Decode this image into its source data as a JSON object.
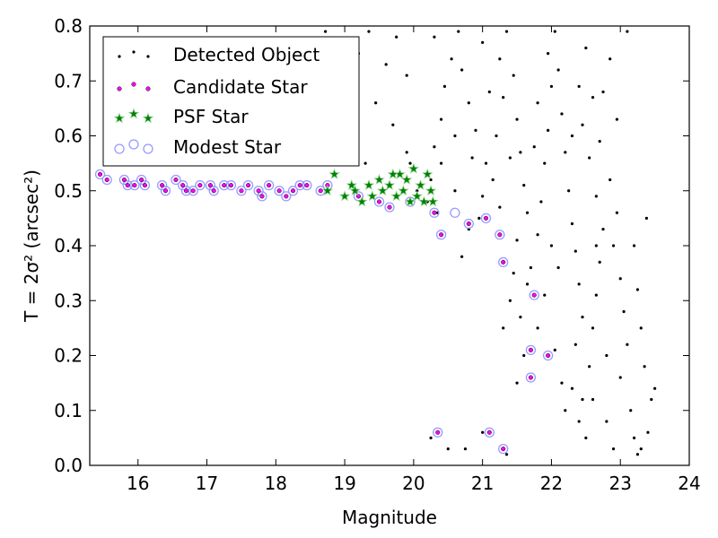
{
  "chart_data": {
    "type": "scatter",
    "title": "",
    "xlabel": "Magnitude",
    "ylabel": "T = 2σ² (arcsec²)",
    "xlim": [
      15.3,
      24.0
    ],
    "ylim": [
      0.0,
      0.8
    ],
    "x_ticks": [
      "16",
      "17",
      "18",
      "19",
      "20",
      "21",
      "22",
      "23",
      "24"
    ],
    "y_ticks": [
      "0.0",
      "0.1",
      "0.2",
      "0.3",
      "0.4",
      "0.5",
      "0.6",
      "0.7",
      "0.8"
    ],
    "grid": false,
    "legend_position": "top-left",
    "series": [
      {
        "name": "Detected Object",
        "marker": "dot",
        "color": "#000000",
        "points": [
          [
            18.72,
            0.79
          ],
          [
            18.95,
            0.77
          ],
          [
            19.2,
            0.75
          ],
          [
            19.35,
            0.79
          ],
          [
            19.6,
            0.73
          ],
          [
            19.75,
            0.78
          ],
          [
            19.9,
            0.71
          ],
          [
            19.05,
            0.69
          ],
          [
            19.45,
            0.66
          ],
          [
            18.95,
            0.64
          ],
          [
            19.7,
            0.62
          ],
          [
            19.9,
            0.57
          ],
          [
            19.95,
            0.55
          ],
          [
            20.05,
            0.5
          ],
          [
            20.25,
            0.52
          ],
          [
            20.2,
            0.48
          ],
          [
            20.3,
            0.58
          ],
          [
            20.4,
            0.63
          ],
          [
            20.45,
            0.69
          ],
          [
            20.55,
            0.74
          ],
          [
            20.3,
            0.78
          ],
          [
            20.65,
            0.79
          ],
          [
            20.7,
            0.72
          ],
          [
            20.8,
            0.66
          ],
          [
            20.9,
            0.61
          ],
          [
            21.05,
            0.55
          ],
          [
            21.0,
            0.49
          ],
          [
            20.95,
            0.45
          ],
          [
            20.8,
            0.43
          ],
          [
            20.7,
            0.38
          ],
          [
            21.15,
            0.52
          ],
          [
            21.2,
            0.6
          ],
          [
            21.3,
            0.67
          ],
          [
            21.25,
            0.74
          ],
          [
            21.35,
            0.79
          ],
          [
            21.45,
            0.71
          ],
          [
            21.5,
            0.63
          ],
          [
            21.55,
            0.57
          ],
          [
            21.6,
            0.51
          ],
          [
            21.65,
            0.46
          ],
          [
            21.5,
            0.41
          ],
          [
            21.45,
            0.35
          ],
          [
            21.4,
            0.3
          ],
          [
            21.55,
            0.27
          ],
          [
            21.6,
            0.2
          ],
          [
            21.5,
            0.15
          ],
          [
            21.7,
            0.36
          ],
          [
            21.8,
            0.42
          ],
          [
            21.85,
            0.48
          ],
          [
            21.9,
            0.55
          ],
          [
            21.95,
            0.61
          ],
          [
            22.0,
            0.69
          ],
          [
            21.95,
            0.75
          ],
          [
            22.05,
            0.79
          ],
          [
            22.1,
            0.72
          ],
          [
            22.15,
            0.64
          ],
          [
            22.2,
            0.57
          ],
          [
            22.25,
            0.5
          ],
          [
            22.3,
            0.44
          ],
          [
            22.35,
            0.39
          ],
          [
            22.4,
            0.33
          ],
          [
            22.45,
            0.27
          ],
          [
            22.35,
            0.22
          ],
          [
            22.3,
            0.14
          ],
          [
            22.4,
            0.08
          ],
          [
            22.5,
            0.05
          ],
          [
            22.55,
            0.18
          ],
          [
            22.6,
            0.25
          ],
          [
            22.65,
            0.31
          ],
          [
            22.7,
            0.37
          ],
          [
            22.75,
            0.43
          ],
          [
            22.65,
            0.49
          ],
          [
            22.55,
            0.56
          ],
          [
            22.45,
            0.62
          ],
          [
            22.4,
            0.69
          ],
          [
            22.5,
            0.76
          ],
          [
            22.6,
            0.67
          ],
          [
            22.7,
            0.59
          ],
          [
            22.85,
            0.52
          ],
          [
            22.95,
            0.46
          ],
          [
            22.9,
            0.4
          ],
          [
            23.0,
            0.34
          ],
          [
            23.05,
            0.28
          ],
          [
            23.1,
            0.22
          ],
          [
            23.0,
            0.16
          ],
          [
            23.15,
            0.1
          ],
          [
            23.2,
            0.05
          ],
          [
            23.3,
            0.03
          ],
          [
            23.4,
            0.06
          ],
          [
            23.45,
            0.12
          ],
          [
            23.35,
            0.18
          ],
          [
            23.3,
            0.25
          ],
          [
            23.25,
            0.32
          ],
          [
            23.38,
            0.45
          ],
          [
            23.5,
            0.14
          ],
          [
            23.1,
            0.79
          ],
          [
            22.85,
            0.74
          ],
          [
            22.95,
            0.63
          ],
          [
            22.75,
            0.68
          ],
          [
            21.9,
            0.31
          ],
          [
            21.8,
            0.25
          ],
          [
            22.05,
            0.21
          ],
          [
            22.15,
            0.15
          ],
          [
            22.2,
            0.1
          ],
          [
            22.6,
            0.12
          ],
          [
            22.8,
            0.08
          ],
          [
            22.9,
            0.03
          ],
          [
            23.25,
            0.02
          ],
          [
            22.1,
            0.36
          ],
          [
            21.75,
            0.58
          ],
          [
            21.25,
            0.47
          ],
          [
            21.1,
            0.68
          ],
          [
            20.85,
            0.56
          ],
          [
            20.6,
            0.5
          ],
          [
            20.4,
            0.55
          ],
          [
            20.6,
            0.6
          ],
          [
            21.0,
            0.77
          ],
          [
            21.4,
            0.56
          ],
          [
            21.8,
            0.66
          ],
          [
            22.3,
            0.6
          ],
          [
            22.0,
            0.4
          ],
          [
            22.65,
            0.4
          ],
          [
            21.65,
            0.33
          ],
          [
            21.3,
            0.25
          ],
          [
            20.75,
            0.03
          ],
          [
            20.5,
            0.03
          ],
          [
            20.25,
            0.05
          ],
          [
            21.0,
            0.06
          ],
          [
            21.35,
            0.02
          ],
          [
            23.2,
            0.4
          ],
          [
            22.8,
            0.2
          ],
          [
            22.45,
            0.12
          ],
          [
            20.35,
            0.46
          ],
          [
            19.3,
            0.55
          ]
        ]
      },
      {
        "name": "Candidate Star",
        "marker": "circle",
        "color": "#ff00ff",
        "points": [
          [
            15.45,
            0.53
          ],
          [
            15.55,
            0.52
          ],
          [
            15.8,
            0.52
          ],
          [
            15.85,
            0.51
          ],
          [
            15.95,
            0.51
          ],
          [
            16.05,
            0.52
          ],
          [
            16.1,
            0.51
          ],
          [
            16.35,
            0.51
          ],
          [
            16.4,
            0.5
          ],
          [
            16.55,
            0.52
          ],
          [
            16.65,
            0.51
          ],
          [
            16.7,
            0.5
          ],
          [
            16.8,
            0.5
          ],
          [
            16.9,
            0.51
          ],
          [
            17.05,
            0.51
          ],
          [
            17.1,
            0.5
          ],
          [
            17.25,
            0.51
          ],
          [
            17.35,
            0.51
          ],
          [
            17.5,
            0.5
          ],
          [
            17.6,
            0.51
          ],
          [
            17.75,
            0.5
          ],
          [
            17.8,
            0.49
          ],
          [
            17.9,
            0.51
          ],
          [
            18.05,
            0.5
          ],
          [
            18.15,
            0.49
          ],
          [
            18.25,
            0.5
          ],
          [
            18.35,
            0.51
          ],
          [
            18.45,
            0.51
          ],
          [
            18.65,
            0.5
          ],
          [
            18.75,
            0.51
          ],
          [
            19.2,
            0.49
          ],
          [
            19.5,
            0.48
          ],
          [
            19.65,
            0.47
          ],
          [
            19.95,
            0.48
          ],
          [
            20.3,
            0.46
          ],
          [
            20.4,
            0.42
          ],
          [
            20.8,
            0.44
          ],
          [
            21.05,
            0.45
          ],
          [
            21.25,
            0.42
          ],
          [
            21.3,
            0.37
          ],
          [
            21.75,
            0.31
          ],
          [
            21.7,
            0.21
          ],
          [
            21.95,
            0.2
          ],
          [
            21.7,
            0.16
          ],
          [
            20.35,
            0.06
          ],
          [
            21.1,
            0.06
          ],
          [
            21.3,
            0.03
          ]
        ]
      },
      {
        "name": "PSF Star",
        "marker": "star",
        "color": "#008000",
        "points": [
          [
            18.75,
            0.5
          ],
          [
            18.85,
            0.53
          ],
          [
            19.0,
            0.49
          ],
          [
            19.1,
            0.51
          ],
          [
            19.15,
            0.5
          ],
          [
            19.25,
            0.48
          ],
          [
            19.35,
            0.51
          ],
          [
            19.4,
            0.49
          ],
          [
            19.5,
            0.52
          ],
          [
            19.55,
            0.5
          ],
          [
            19.65,
            0.51
          ],
          [
            19.75,
            0.49
          ],
          [
            19.8,
            0.53
          ],
          [
            19.85,
            0.5
          ],
          [
            19.9,
            0.52
          ],
          [
            19.95,
            0.48
          ],
          [
            20.0,
            0.54
          ],
          [
            20.05,
            0.49
          ],
          [
            20.1,
            0.51
          ],
          [
            20.15,
            0.48
          ],
          [
            20.2,
            0.53
          ],
          [
            20.25,
            0.5
          ],
          [
            20.28,
            0.48
          ],
          [
            19.7,
            0.53
          ]
        ]
      },
      {
        "name": "Modest Star",
        "marker": "hollow-circle",
        "color": "#9999ff",
        "points": [
          [
            15.45,
            0.53
          ],
          [
            15.55,
            0.52
          ],
          [
            15.8,
            0.52
          ],
          [
            15.85,
            0.51
          ],
          [
            15.95,
            0.51
          ],
          [
            16.05,
            0.52
          ],
          [
            16.1,
            0.51
          ],
          [
            16.35,
            0.51
          ],
          [
            16.4,
            0.5
          ],
          [
            16.55,
            0.52
          ],
          [
            16.65,
            0.51
          ],
          [
            16.7,
            0.5
          ],
          [
            16.8,
            0.5
          ],
          [
            16.9,
            0.51
          ],
          [
            17.05,
            0.51
          ],
          [
            17.1,
            0.5
          ],
          [
            17.25,
            0.51
          ],
          [
            17.35,
            0.51
          ],
          [
            17.5,
            0.5
          ],
          [
            17.6,
            0.51
          ],
          [
            17.75,
            0.5
          ],
          [
            17.8,
            0.49
          ],
          [
            17.9,
            0.51
          ],
          [
            18.05,
            0.5
          ],
          [
            18.15,
            0.49
          ],
          [
            18.25,
            0.5
          ],
          [
            18.35,
            0.51
          ],
          [
            18.45,
            0.51
          ],
          [
            18.65,
            0.5
          ],
          [
            18.75,
            0.51
          ],
          [
            19.2,
            0.49
          ],
          [
            19.5,
            0.48
          ],
          [
            19.65,
            0.47
          ],
          [
            19.95,
            0.48
          ],
          [
            20.3,
            0.46
          ],
          [
            20.4,
            0.42
          ],
          [
            20.6,
            0.46
          ],
          [
            20.8,
            0.44
          ],
          [
            21.05,
            0.45
          ],
          [
            21.25,
            0.42
          ],
          [
            21.3,
            0.37
          ],
          [
            21.75,
            0.31
          ],
          [
            21.7,
            0.21
          ],
          [
            21.95,
            0.2
          ],
          [
            21.7,
            0.16
          ],
          [
            20.35,
            0.06
          ],
          [
            21.1,
            0.06
          ],
          [
            21.3,
            0.03
          ]
        ]
      }
    ]
  },
  "legend": {
    "items": [
      {
        "label": "Detected Object"
      },
      {
        "label": "Candidate Star"
      },
      {
        "label": "PSF Star"
      },
      {
        "label": "Modest Star"
      }
    ]
  }
}
